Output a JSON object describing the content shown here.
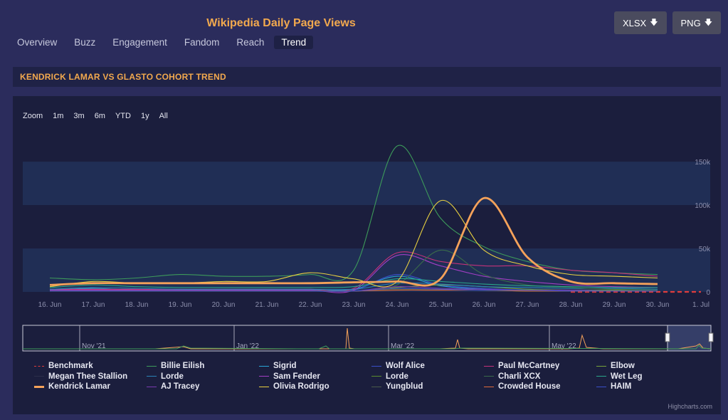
{
  "header": {
    "title": "Wikipedia Daily Page Views"
  },
  "tabs": [
    {
      "label": "Overview",
      "active": false
    },
    {
      "label": "Buzz",
      "active": false
    },
    {
      "label": "Engagement",
      "active": false
    },
    {
      "label": "Fandom",
      "active": false
    },
    {
      "label": "Reach",
      "active": false
    },
    {
      "label": "Trend",
      "active": true
    }
  ],
  "downloads": {
    "xlsx_label": "XLSX",
    "png_label": "PNG",
    "arrow_icon": "download-arrow-icon"
  },
  "section": {
    "title": "KENDRICK LAMAR VS GLASTO COHORT TREND"
  },
  "range_selector": {
    "zoom_label": "Zoom",
    "buttons": [
      "1m",
      "3m",
      "6m",
      "YTD",
      "1y",
      "All"
    ]
  },
  "navigator": {
    "labels": [
      "Nov '21",
      "Jan '22",
      "Mar '22",
      "May '22"
    ]
  },
  "credits": "Highcharts.com",
  "colors": {
    "background": "#2b2c5c",
    "panel": "#1b1e3d",
    "accent": "#f2a94e",
    "band": "#202e55",
    "benchmark": "#e03c3c",
    "kendrick": "#f5a25a"
  },
  "chart_data": {
    "type": "line",
    "title": "",
    "xlabel": "",
    "ylabel": "",
    "x": [
      "16. Jun",
      "17. Jun",
      "18. Jun",
      "19. Jun",
      "20. Jun",
      "21. Jun",
      "22. Jun",
      "23. Jun",
      "24. Jun",
      "25. Jun",
      "26. Jun",
      "27. Jun",
      "28. Jun",
      "29. Jun",
      "30. Jun",
      "1. Jul"
    ],
    "y_ticks": [
      "0",
      "50k",
      "100k",
      "150k"
    ],
    "ylim": [
      0,
      175000
    ],
    "legend_position": "bottom",
    "series": [
      {
        "name": "Benchmark",
        "color": "#e03c3c",
        "dashed": true,
        "values": [
          null,
          null,
          null,
          null,
          null,
          null,
          null,
          null,
          null,
          null,
          null,
          null,
          0,
          0,
          0,
          0
        ]
      },
      {
        "name": "Billie Eilish",
        "color": "#3d9a5a",
        "values": [
          16000,
          14000,
          16000,
          20000,
          18000,
          18000,
          20000,
          25000,
          168000,
          85000,
          52000,
          35000,
          25000,
          22000,
          20000,
          null
        ]
      },
      {
        "name": "Sigrid",
        "color": "#2aa6d8",
        "values": [
          2000,
          4000,
          2000,
          2000,
          2000,
          2000,
          2000,
          3000,
          18000,
          7000,
          3000,
          2000,
          2000,
          2000,
          2000,
          null
        ]
      },
      {
        "name": "Wolf Alice",
        "color": "#3a4fc9",
        "values": [
          1000,
          1000,
          1000,
          1000,
          1000,
          1000,
          1000,
          2000,
          20000,
          8000,
          4000,
          2000,
          2000,
          1000,
          1000,
          null
        ]
      },
      {
        "name": "Paul McCartney",
        "color": "#c4327a",
        "values": [
          3000,
          3000,
          3000,
          3000,
          3000,
          3000,
          3000,
          4000,
          45000,
          35000,
          30000,
          30000,
          25000,
          22000,
          18000,
          null
        ]
      },
      {
        "name": "Elbow",
        "color": "#76a23a",
        "values": [
          1000,
          1000,
          1000,
          1000,
          1000,
          1000,
          1000,
          1000,
          5000,
          8000,
          6000,
          3000,
          2000,
          2000,
          2000,
          null
        ]
      },
      {
        "name": "Megan Thee Stallion",
        "color": "#2b2e4a",
        "values": [
          1000,
          1000,
          1000,
          1000,
          1000,
          1000,
          1000,
          1000,
          3000,
          2000,
          2000,
          1000,
          1000,
          1000,
          1000,
          null
        ]
      },
      {
        "name": "Lorde",
        "color": "#2a82b8",
        "values": [
          3000,
          5000,
          4000,
          3000,
          3000,
          3000,
          3000,
          3000,
          10000,
          9000,
          6000,
          5000,
          4000,
          4000,
          3000,
          null
        ]
      },
      {
        "name": "Sam Fender",
        "color": "#a23ec4",
        "values": [
          2000,
          2000,
          2000,
          2000,
          2000,
          2000,
          2000,
          2000,
          42000,
          30000,
          18000,
          12000,
          8000,
          6000,
          5000,
          null
        ]
      },
      {
        "name": "Lorde",
        "color": "#5a8c2e",
        "values": [
          1000,
          1000,
          1000,
          1000,
          1000,
          1000,
          1000,
          1000,
          4000,
          3000,
          2000,
          1000,
          1000,
          1000,
          1000,
          null
        ]
      },
      {
        "name": "Charli XCX",
        "color": "#3a6b4a",
        "values": [
          1000,
          1000,
          1000,
          1000,
          1000,
          1000,
          1000,
          1000,
          8000,
          48000,
          20000,
          8000,
          5000,
          3000,
          2000,
          null
        ]
      },
      {
        "name": "Wet Leg",
        "color": "#2aa68a",
        "values": [
          5000,
          8000,
          6000,
          5000,
          5000,
          5000,
          5000,
          6000,
          15000,
          12000,
          9000,
          7000,
          6000,
          5000,
          5000,
          null
        ]
      },
      {
        "name": "Kendrick Lamar",
        "color": "#f5a25a",
        "bold": true,
        "values": [
          8000,
          10000,
          10000,
          10000,
          10000,
          10000,
          10000,
          11000,
          12000,
          15000,
          108000,
          40000,
          12000,
          10000,
          9000,
          null
        ]
      },
      {
        "name": "AJ Tracey",
        "color": "#7a3ab0",
        "values": [
          1000,
          1000,
          1000,
          1000,
          1000,
          1000,
          1000,
          1000,
          6000,
          4000,
          3000,
          2000,
          2000,
          1000,
          1000,
          null
        ]
      },
      {
        "name": "Olivia Rodrigo",
        "color": "#e8d040",
        "values": [
          6000,
          12000,
          10000,
          10000,
          12000,
          12000,
          22000,
          15000,
          12000,
          105000,
          48000,
          30000,
          20000,
          18000,
          16000,
          null
        ]
      },
      {
        "name": "Yungblud",
        "color": "#4a5a4a",
        "values": [
          1000,
          1000,
          1000,
          1000,
          1000,
          1000,
          1000,
          1000,
          3000,
          3000,
          2000,
          2000,
          1000,
          1000,
          1000,
          null
        ]
      },
      {
        "name": "Crowded House",
        "color": "#e06a3a",
        "values": [
          1000,
          1000,
          1000,
          1000,
          1000,
          1000,
          1000,
          1000,
          2000,
          2000,
          2000,
          1000,
          1000,
          1000,
          1000,
          null
        ]
      },
      {
        "name": "HAIM",
        "color": "#3a4fc9",
        "values": [
          1000,
          1000,
          1000,
          1000,
          1000,
          1000,
          1000,
          1000,
          4000,
          3000,
          2000,
          2000,
          1000,
          1000,
          1000,
          null
        ]
      }
    ]
  }
}
